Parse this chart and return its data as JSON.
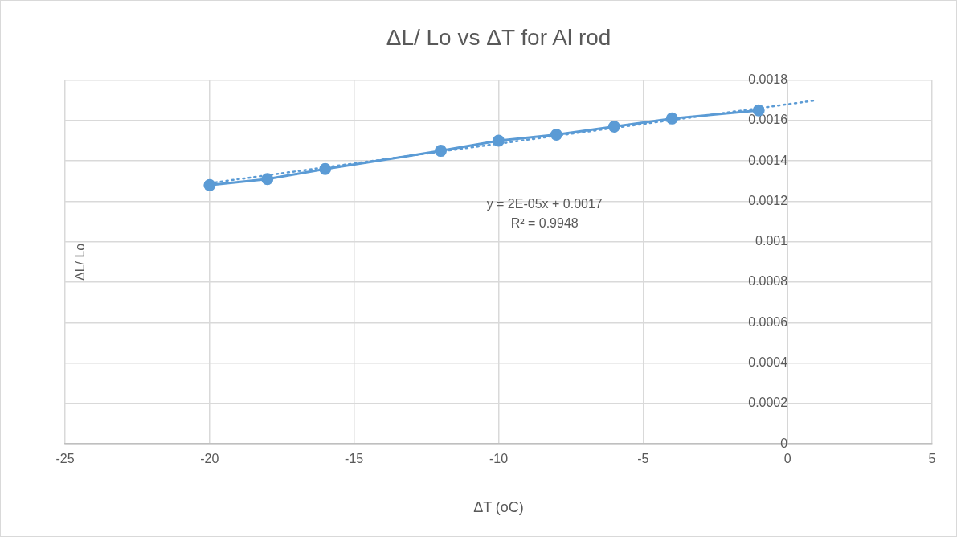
{
  "chart_data": {
    "type": "line",
    "title": "ΔL/ Lo vs ΔT for Al rod",
    "xlabel": "ΔT (oC)",
    "ylabel": "ΔL/ Lo",
    "series": [
      {
        "color": "#5b9bd5",
        "marker": "circle",
        "line_style": "solid",
        "x": [
          -20,
          -18,
          -16,
          -12,
          -10,
          -8,
          -6,
          -4,
          -1
        ],
        "values": [
          0.00128,
          0.00131,
          0.00136,
          0.00145,
          0.0015,
          0.00153,
          0.00157,
          0.00161,
          0.00165
        ]
      },
      {
        "color": "#5b9bd5",
        "marker": "none",
        "line_style": "dotted",
        "x": [
          -20,
          1
        ],
        "values": [
          0.00129,
          0.0017
        ]
      }
    ],
    "annotations": [
      "y = 2E-05x + 0.0017",
      "R² = 0.9948"
    ],
    "xlim": [
      -25,
      5
    ],
    "xticks": [
      -25,
      -20,
      -15,
      -10,
      -5,
      0,
      5
    ],
    "ylim": [
      0,
      0.0018
    ],
    "yticks": [
      0,
      0.0002,
      0.0004,
      0.0006,
      0.0008,
      0.001,
      0.0012,
      0.0014,
      0.0016,
      0.0018
    ],
    "grid": true,
    "legend": false
  }
}
